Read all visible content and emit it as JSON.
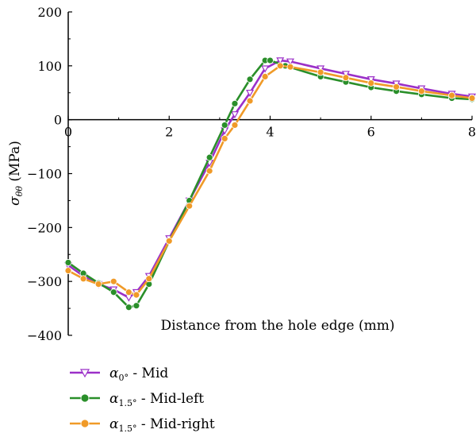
{
  "chart_data": {
    "type": "line",
    "xlabel": "Distance from the hole edge (mm)",
    "ylabel": "σθθ (MPa)",
    "xlim": [
      0,
      8
    ],
    "ylim": [
      -400,
      200
    ],
    "xticks": [
      0,
      2,
      4,
      6,
      8
    ],
    "yticks": [
      -400,
      -300,
      -200,
      -100,
      0,
      100,
      200
    ],
    "xtick_labels": [
      "0",
      "2",
      "4",
      "6",
      "8"
    ],
    "ytick_labels": [
      "−400",
      "−300",
      "−200",
      "−100",
      "0",
      "100",
      "200"
    ],
    "grid": false,
    "legend_position": "bottom-left",
    "series": [
      {
        "name": "α0° - Mid",
        "color": "#9b30c8",
        "marker": "triangle-down",
        "x": [
          0,
          0.3,
          0.6,
          0.9,
          1.2,
          1.35,
          1.6,
          2.0,
          2.4,
          2.8,
          3.1,
          3.3,
          3.6,
          3.9,
          4.2,
          4.4,
          5.0,
          5.5,
          6.0,
          6.5,
          7.0,
          7.6,
          8.0
        ],
        "y": [
          -270,
          -290,
          -305,
          -315,
          -330,
          -320,
          -290,
          -220,
          -150,
          -80,
          -20,
          10,
          50,
          95,
          110,
          108,
          95,
          85,
          75,
          67,
          58,
          48,
          43
        ]
      },
      {
        "name": "α1.5° - Mid-left",
        "color": "#2a8f2a",
        "marker": "circle",
        "x": [
          0,
          0.3,
          0.6,
          0.9,
          1.2,
          1.35,
          1.6,
          2.0,
          2.4,
          2.8,
          3.1,
          3.3,
          3.6,
          3.9,
          4.0,
          4.3,
          5.0,
          5.5,
          6.0,
          6.5,
          7.0,
          7.6,
          8.0
        ],
        "y": [
          -265,
          -285,
          -303,
          -320,
          -348,
          -345,
          -305,
          -225,
          -150,
          -70,
          -10,
          30,
          75,
          110,
          110,
          100,
          80,
          70,
          60,
          53,
          47,
          40,
          38
        ]
      },
      {
        "name": "α1.5° - Mid-right",
        "color": "#f09a28",
        "marker": "circle",
        "x": [
          0,
          0.3,
          0.6,
          0.9,
          1.2,
          1.35,
          1.6,
          2.0,
          2.4,
          2.8,
          3.1,
          3.3,
          3.6,
          3.9,
          4.2,
          4.4,
          5.0,
          5.5,
          6.0,
          6.5,
          7.0,
          7.6,
          8.0
        ],
        "y": [
          -280,
          -295,
          -305,
          -300,
          -320,
          -325,
          -295,
          -225,
          -160,
          -95,
          -35,
          -10,
          35,
          80,
          100,
          98,
          88,
          78,
          68,
          61,
          53,
          45,
          40
        ]
      }
    ]
  }
}
